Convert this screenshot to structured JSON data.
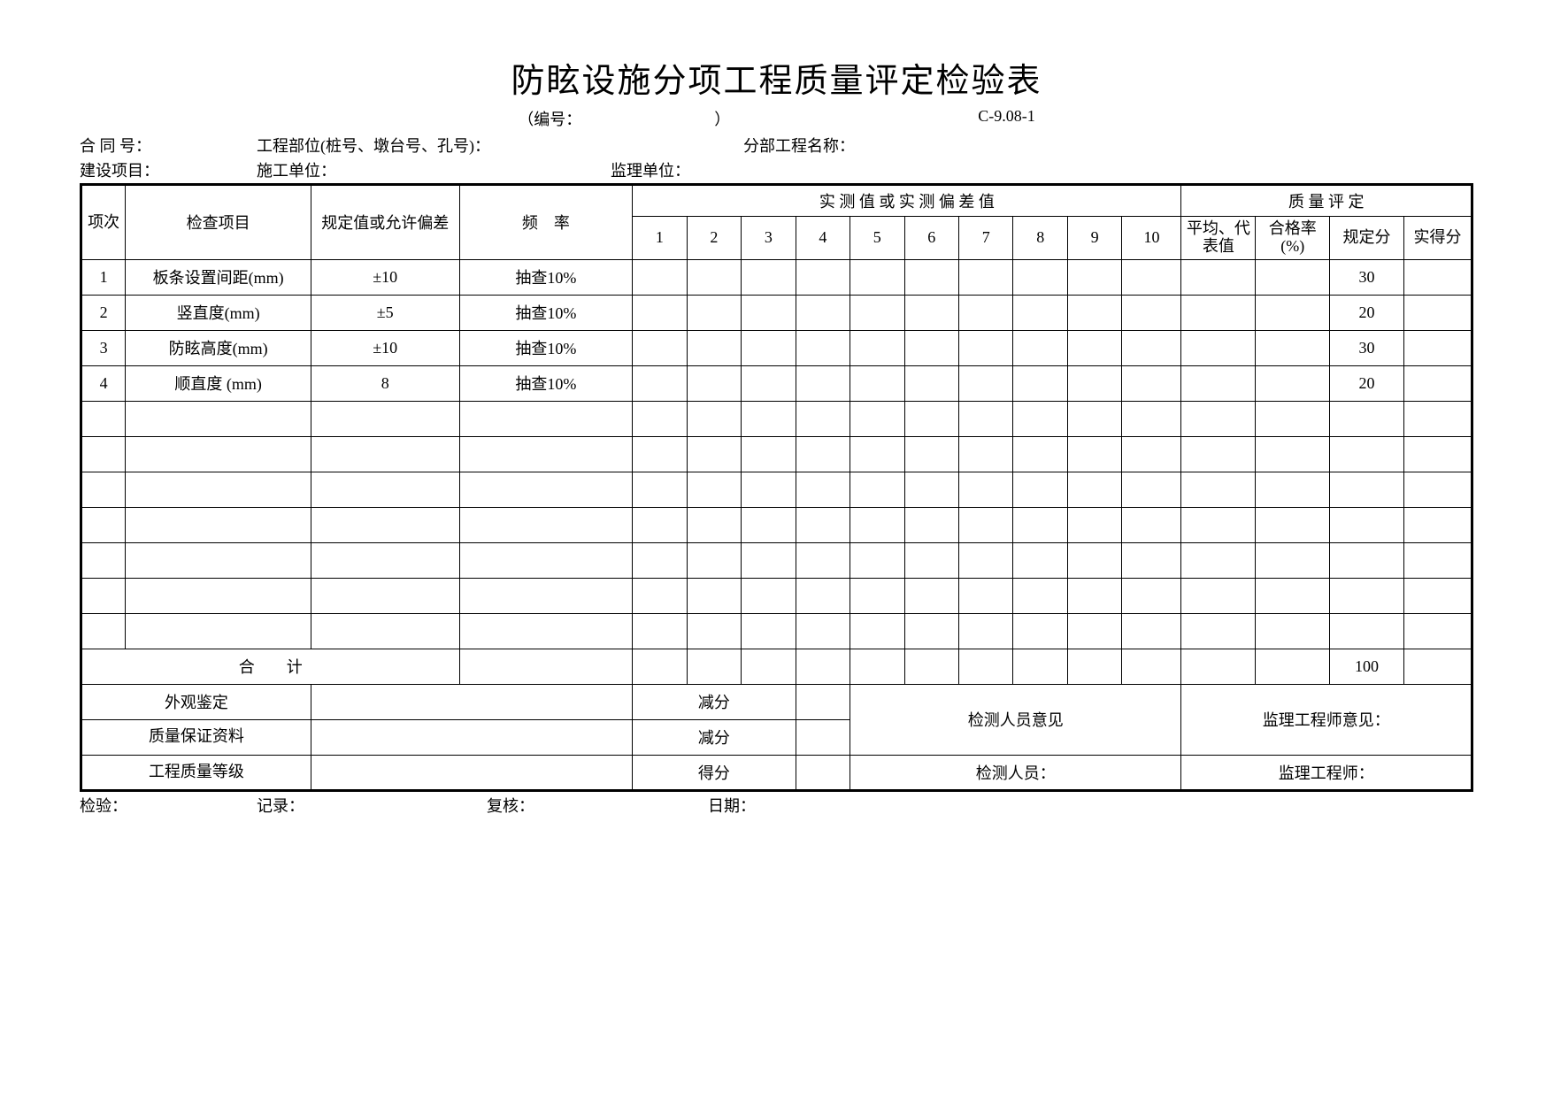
{
  "title": "防眩设施分项工程质量评定检验表",
  "subtitle": {
    "numLabel": "（编号：",
    "numClose": "）",
    "code": "C-9.08-1"
  },
  "header": {
    "l1a": "合 同 号：",
    "l1b": "工程部位(桩号、墩台号、孔号)：",
    "l1c": "分部工程名称：",
    "l2a": "建设项目：",
    "l2b": "施工单位：",
    "l2c": "监理单位："
  },
  "cols": {
    "seq": "项次",
    "item": "检查项目",
    "spec": "规定值或允许偏差",
    "freq": "频　率",
    "measHeader": "实 测 值 或 实 测 偏 差 值",
    "qualHeader": "质 量 评 定",
    "nums": [
      "1",
      "2",
      "3",
      "4",
      "5",
      "6",
      "7",
      "8",
      "9",
      "10"
    ],
    "avg": "平均、代表值",
    "pass": "合格率(%)",
    "std": "规定分",
    "act": "实得分"
  },
  "rows": [
    {
      "n": "1",
      "item": "板条设置间距(mm)",
      "spec": "±10",
      "freq": "抽查10%",
      "std": "30"
    },
    {
      "n": "2",
      "item": "竖直度(mm)",
      "spec": "±5",
      "freq": "抽查10%",
      "std": "20"
    },
    {
      "n": "3",
      "item": "防眩高度(mm)",
      "spec": "±10",
      "freq": "抽查10%",
      "std": "30"
    },
    {
      "n": "4",
      "item": "顺直度 (mm)",
      "spec": "8",
      "freq": "抽查10%",
      "std": "20"
    }
  ],
  "blankRows": 7,
  "totals": {
    "label": "合　　计",
    "std": "100"
  },
  "bottom": {
    "appearance": "外观鉴定",
    "deduct": "减分",
    "qa": "质量保证资料",
    "grade": "工程质量等级",
    "score": "得分",
    "inspectOpinion": "检测人员意见",
    "supervisorOpinion": "监理工程师意见：",
    "inspector": "检测人员：",
    "supervisor": "监理工程师："
  },
  "footer": {
    "a": "检验：",
    "b": "记录：",
    "c": "复核：",
    "d": "日期："
  },
  "colors": {
    "border": "#000000",
    "bg": "#ffffff",
    "text": "#000000"
  }
}
